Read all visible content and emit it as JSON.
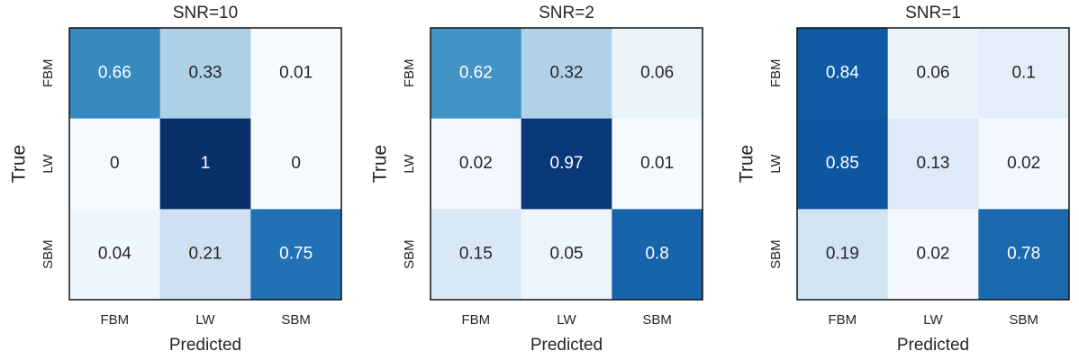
{
  "chart_data": [
    {
      "type": "heatmap",
      "title": "SNR=10",
      "xlabel": "Predicted",
      "ylabel": "True",
      "x_categories": [
        "FBM",
        "LW",
        "SBM"
      ],
      "y_categories": [
        "FBM",
        "LW",
        "SBM"
      ],
      "values": [
        [
          0.66,
          0.33,
          0.01
        ],
        [
          0,
          1,
          0
        ],
        [
          0.04,
          0.21,
          0.75
        ]
      ],
      "colormap": "Blues",
      "zlim": [
        0,
        1
      ]
    },
    {
      "type": "heatmap",
      "title": "SNR=2",
      "xlabel": "Predicted",
      "ylabel": "True",
      "x_categories": [
        "FBM",
        "LW",
        "SBM"
      ],
      "y_categories": [
        "FBM",
        "LW",
        "SBM"
      ],
      "values": [
        [
          0.62,
          0.32,
          0.06
        ],
        [
          0.02,
          0.97,
          0.01
        ],
        [
          0.15,
          0.05,
          0.8
        ]
      ],
      "colormap": "Blues",
      "zlim": [
        0,
        1
      ]
    },
    {
      "type": "heatmap",
      "title": "SNR=1",
      "xlabel": "Predicted",
      "ylabel": "True",
      "x_categories": [
        "FBM",
        "LW",
        "SBM"
      ],
      "y_categories": [
        "FBM",
        "LW",
        "SBM"
      ],
      "values": [
        [
          0.84,
          0.06,
          0.1
        ],
        [
          0.85,
          0.13,
          0.02
        ],
        [
          0.19,
          0.02,
          0.78
        ]
      ],
      "colormap": "Blues",
      "zlim": [
        0,
        1
      ]
    }
  ]
}
